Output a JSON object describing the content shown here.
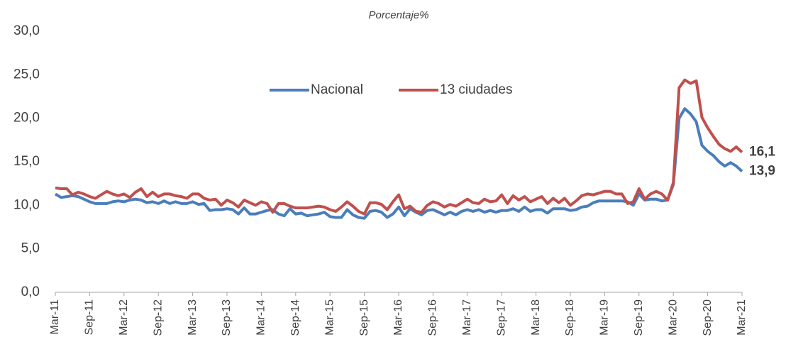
{
  "chart_data": {
    "type": "line",
    "title": "Porcentaje%",
    "categories": [
      "Mar-11",
      null,
      null,
      null,
      null,
      null,
      "Sep-11",
      null,
      null,
      null,
      null,
      null,
      "Mar-12",
      null,
      null,
      null,
      null,
      null,
      "Sep-12",
      null,
      null,
      null,
      null,
      null,
      "Mar-13",
      null,
      null,
      null,
      null,
      null,
      "Sep-13",
      null,
      null,
      null,
      null,
      null,
      "Mar-14",
      null,
      null,
      null,
      null,
      null,
      "Sep-14",
      null,
      null,
      null,
      null,
      null,
      "Mar-15",
      null,
      null,
      null,
      null,
      null,
      "Sep-15",
      null,
      null,
      null,
      null,
      null,
      "Mar-16",
      null,
      null,
      null,
      null,
      null,
      "Sep-16",
      null,
      null,
      null,
      null,
      null,
      "Mar-17",
      null,
      null,
      null,
      null,
      null,
      "Sep-17",
      null,
      null,
      null,
      null,
      null,
      "Mar-18",
      null,
      null,
      null,
      null,
      null,
      "Sep-18",
      null,
      null,
      null,
      null,
      null,
      "Mar-19",
      null,
      null,
      null,
      null,
      null,
      "Sep-19",
      null,
      null,
      null,
      null,
      null,
      "Mar-20",
      null,
      null,
      null,
      null,
      null,
      "Sep-20",
      null,
      null,
      null,
      null,
      null,
      "Mar-21"
    ],
    "series": [
      {
        "name": "Nacional",
        "color": "#4a7ebb",
        "values": [
          11.3,
          10.9,
          11.0,
          11.1,
          11.0,
          10.7,
          10.4,
          10.2,
          10.2,
          10.2,
          10.4,
          10.5,
          10.4,
          10.6,
          10.7,
          10.6,
          10.3,
          10.4,
          10.2,
          10.5,
          10.2,
          10.4,
          10.2,
          10.2,
          10.4,
          10.1,
          10.2,
          9.4,
          9.5,
          9.5,
          9.6,
          9.5,
          9.0,
          9.7,
          9.0,
          9.0,
          9.2,
          9.4,
          9.5,
          9.0,
          8.8,
          9.6,
          9.0,
          9.1,
          8.8,
          8.9,
          9.0,
          9.2,
          8.7,
          8.6,
          8.6,
          9.5,
          8.9,
          8.6,
          8.5,
          9.3,
          9.4,
          9.2,
          8.6,
          9.0,
          9.8,
          8.8,
          9.6,
          9.2,
          8.9,
          9.4,
          9.5,
          9.2,
          8.9,
          9.2,
          8.9,
          9.3,
          9.5,
          9.3,
          9.5,
          9.2,
          9.4,
          9.2,
          9.4,
          9.4,
          9.6,
          9.3,
          9.8,
          9.3,
          9.5,
          9.5,
          9.1,
          9.6,
          9.6,
          9.6,
          9.4,
          9.5,
          9.8,
          9.9,
          10.3,
          10.5,
          10.5,
          10.5,
          10.5,
          10.5,
          10.4,
          10.0,
          11.3,
          10.6,
          10.7,
          10.7,
          10.5,
          10.6,
          12.4,
          20.0,
          21.1,
          20.5,
          19.6,
          16.9,
          16.2,
          15.7,
          15.0,
          14.5,
          14.9,
          14.5,
          13.9
        ],
        "value_labels": [
          null,
          null,
          null,
          null,
          null,
          null,
          null,
          null,
          null,
          null,
          null,
          null,
          null,
          null,
          null,
          null,
          null,
          null,
          null,
          null,
          null,
          null,
          null,
          null,
          null,
          null,
          null,
          null,
          null,
          null,
          null,
          null,
          null,
          null,
          null,
          null,
          null,
          null,
          null,
          null,
          null,
          null,
          null,
          null,
          null,
          null,
          null,
          null,
          null,
          null,
          null,
          null,
          null,
          null,
          null,
          null,
          null,
          null,
          null,
          null,
          null,
          null,
          null,
          null,
          null,
          null,
          null,
          null,
          null,
          null,
          null,
          null,
          null,
          null,
          null,
          null,
          null,
          null,
          null,
          null,
          null,
          null,
          null,
          null,
          null,
          null,
          null,
          null,
          null,
          null,
          null,
          null,
          null,
          null,
          null,
          null,
          null,
          null,
          null,
          null,
          null,
          null,
          null,
          null,
          null,
          null,
          null,
          null,
          null,
          null,
          null,
          null,
          null,
          null,
          null,
          null,
          null,
          null,
          null,
          null,
          "13,9"
        ]
      },
      {
        "name": "13 ciudades",
        "color": "#c0504d",
        "values": [
          12.0,
          11.9,
          11.9,
          11.2,
          11.5,
          11.3,
          11.0,
          10.8,
          11.2,
          11.6,
          11.3,
          11.1,
          11.3,
          10.9,
          11.5,
          11.9,
          11.0,
          11.5,
          11.0,
          11.3,
          11.3,
          11.1,
          11.0,
          10.8,
          11.3,
          11.3,
          10.8,
          10.6,
          10.7,
          10.0,
          10.6,
          10.3,
          9.8,
          10.6,
          10.3,
          10.0,
          10.4,
          10.2,
          9.2,
          10.2,
          10.2,
          9.9,
          9.7,
          9.7,
          9.7,
          9.8,
          9.9,
          9.8,
          9.5,
          9.3,
          9.8,
          10.4,
          9.9,
          9.3,
          9.0,
          10.3,
          10.3,
          10.1,
          9.5,
          10.4,
          11.2,
          9.6,
          9.9,
          9.3,
          9.2,
          10.0,
          10.4,
          10.2,
          9.8,
          10.1,
          9.9,
          10.3,
          10.7,
          10.3,
          10.2,
          10.7,
          10.4,
          10.5,
          11.2,
          10.2,
          11.1,
          10.6,
          11.0,
          10.4,
          10.7,
          11.0,
          10.2,
          10.8,
          10.3,
          10.8,
          10.0,
          10.5,
          11.1,
          11.3,
          11.2,
          11.4,
          11.6,
          11.6,
          11.3,
          11.3,
          10.2,
          10.4,
          11.9,
          10.7,
          11.3,
          11.6,
          11.3,
          10.6,
          12.6,
          23.5,
          24.4,
          24.0,
          24.3,
          20.1,
          18.9,
          17.9,
          17.0,
          16.5,
          16.2,
          16.7,
          16.1
        ],
        "value_labels": [
          null,
          null,
          null,
          null,
          null,
          null,
          null,
          null,
          null,
          null,
          null,
          null,
          null,
          null,
          null,
          null,
          null,
          null,
          null,
          null,
          null,
          null,
          null,
          null,
          null,
          null,
          null,
          null,
          null,
          null,
          null,
          null,
          null,
          null,
          null,
          null,
          null,
          null,
          null,
          null,
          null,
          null,
          null,
          null,
          null,
          null,
          null,
          null,
          null,
          null,
          null,
          null,
          null,
          null,
          null,
          null,
          null,
          null,
          null,
          null,
          null,
          null,
          null,
          null,
          null,
          null,
          null,
          null,
          null,
          null,
          null,
          null,
          null,
          null,
          null,
          null,
          null,
          null,
          null,
          null,
          null,
          null,
          null,
          null,
          null,
          null,
          null,
          null,
          null,
          null,
          null,
          null,
          null,
          null,
          null,
          null,
          null,
          null,
          null,
          null,
          null,
          null,
          null,
          null,
          null,
          null,
          null,
          null,
          null,
          null,
          null,
          null,
          null,
          null,
          null,
          null,
          null,
          null,
          null,
          null,
          "16,1"
        ]
      }
    ],
    "ylim": [
      0,
      30
    ],
    "yticks": [
      {
        "value": 0,
        "label": "0,0"
      },
      {
        "value": 5,
        "label": "5,0"
      },
      {
        "value": 10,
        "label": "10,0"
      },
      {
        "value": 15,
        "label": "15,0"
      },
      {
        "value": 20,
        "label": "20,0"
      },
      {
        "value": 25,
        "label": "25,0"
      },
      {
        "value": 30,
        "label": "30,0"
      }
    ],
    "legend": "top"
  }
}
